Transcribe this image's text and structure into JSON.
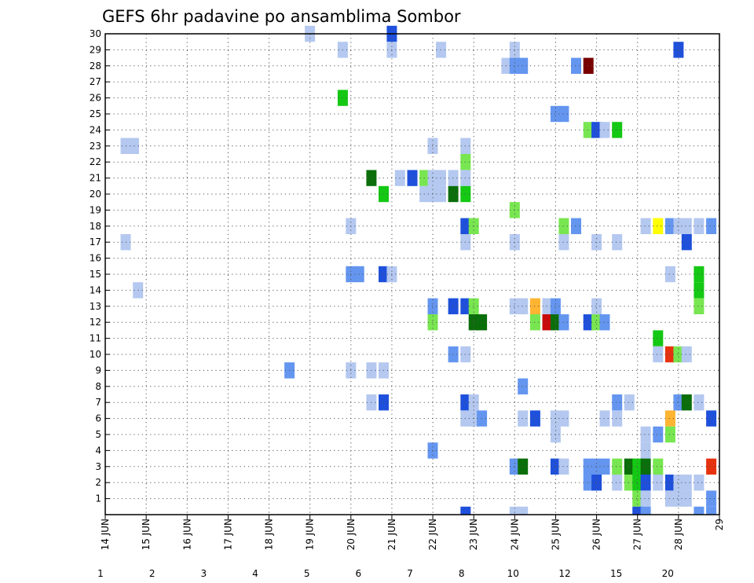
{
  "chart_data": {
    "type": "heatmap",
    "title": "GEFS 6hr padavine po ansamblima Sombor",
    "xlabel": "",
    "ylabel": "",
    "x_ticks": [
      "14 JUN",
      "15 JUN",
      "16 JUN",
      "17 JUN",
      "18 JUN",
      "19 JUN",
      "20 JUN",
      "21 JUN",
      "22 JUN",
      "23 JUN",
      "24 JUN",
      "25 JUN",
      "26 JUN",
      "27 JUN",
      "28 JUN",
      "29"
    ],
    "xlim": [
      14,
      29
    ],
    "y_ticks": [
      1,
      2,
      3,
      4,
      5,
      6,
      7,
      8,
      9,
      10,
      11,
      12,
      13,
      14,
      15,
      16,
      17,
      18,
      19,
      20,
      21,
      22,
      23,
      24,
      25,
      26,
      27,
      28,
      29,
      30
    ],
    "ylim": [
      0,
      30
    ],
    "grid": true,
    "legend": {
      "placement": "bottom",
      "labels": [
        "1",
        "2",
        "3",
        "4",
        "5",
        "6",
        "7",
        "8",
        "10",
        "12",
        "15",
        "20"
      ],
      "colors": [
        "#b4c8f0",
        "#6496f0",
        "#1e50dc",
        "#78e650",
        "#14c814",
        "#0a6e0a",
        "#ffff00",
        "#ffb432",
        "#ff7814",
        "#e6320f",
        "#c80a0a",
        "#780000"
      ]
    },
    "value_colors": {
      "1": "#b4c8f0",
      "2": "#6496f0",
      "3": "#1e50dc",
      "4": "#78e650",
      "5": "#14c814",
      "6": "#0a6e0a",
      "7": "#ffff00",
      "8": "#ffb432",
      "10": "#ff7814",
      "12": "#e6320f",
      "15": "#c80a0a",
      "20": "#780000"
    },
    "cells": [
      [
        19.0,
        30,
        1
      ],
      [
        21.0,
        30,
        3
      ],
      [
        19.8,
        29,
        1
      ],
      [
        21.0,
        29,
        1
      ],
      [
        22.2,
        29,
        1
      ],
      [
        24.0,
        29,
        1
      ],
      [
        28.0,
        29,
        3
      ],
      [
        23.8,
        28,
        1
      ],
      [
        24.0,
        28,
        2
      ],
      [
        24.2,
        28,
        2
      ],
      [
        25.5,
        28,
        2
      ],
      [
        25.8,
        28,
        20
      ],
      [
        19.8,
        26,
        5
      ],
      [
        25.0,
        25,
        2
      ],
      [
        25.2,
        25,
        2
      ],
      [
        25.8,
        24,
        4
      ],
      [
        26.0,
        24,
        3
      ],
      [
        26.2,
        24,
        1
      ],
      [
        26.5,
        24,
        5
      ],
      [
        14.5,
        23,
        1
      ],
      [
        14.7,
        23,
        1
      ],
      [
        22.0,
        23,
        1
      ],
      [
        22.8,
        23,
        1
      ],
      [
        22.8,
        22,
        4
      ],
      [
        20.5,
        21,
        6
      ],
      [
        21.2,
        21,
        1
      ],
      [
        21.5,
        21,
        3
      ],
      [
        21.8,
        21,
        4
      ],
      [
        22.0,
        21,
        1
      ],
      [
        22.2,
        21,
        1
      ],
      [
        22.5,
        21,
        1
      ],
      [
        22.8,
        21,
        1
      ],
      [
        20.8,
        20,
        5
      ],
      [
        21.8,
        20,
        1
      ],
      [
        22.0,
        20,
        1
      ],
      [
        22.2,
        20,
        1
      ],
      [
        22.5,
        20,
        6
      ],
      [
        22.8,
        20,
        5
      ],
      [
        24.0,
        19,
        4
      ],
      [
        20.0,
        18,
        1
      ],
      [
        22.8,
        18,
        3
      ],
      [
        23.0,
        18,
        4
      ],
      [
        25.2,
        18,
        4
      ],
      [
        25.5,
        18,
        2
      ],
      [
        27.2,
        18,
        1
      ],
      [
        27.5,
        18,
        7
      ],
      [
        27.8,
        18,
        2
      ],
      [
        28.0,
        18,
        1
      ],
      [
        28.2,
        18,
        1
      ],
      [
        28.5,
        18,
        1
      ],
      [
        28.8,
        18,
        2
      ],
      [
        14.5,
        17,
        1
      ],
      [
        22.8,
        17,
        1
      ],
      [
        24.0,
        17,
        1
      ],
      [
        25.2,
        17,
        1
      ],
      [
        26.0,
        17,
        1
      ],
      [
        26.5,
        17,
        1
      ],
      [
        28.2,
        17,
        3
      ],
      [
        20.0,
        15,
        2
      ],
      [
        20.2,
        15,
        2
      ],
      [
        20.8,
        15,
        3
      ],
      [
        21.0,
        15,
        1
      ],
      [
        27.8,
        15,
        1
      ],
      [
        28.5,
        15,
        5
      ],
      [
        14.8,
        14,
        1
      ],
      [
        28.5,
        14,
        5
      ],
      [
        22.0,
        13,
        2
      ],
      [
        22.5,
        13,
        3
      ],
      [
        22.8,
        13,
        3
      ],
      [
        23.0,
        13,
        4
      ],
      [
        24.0,
        13,
        1
      ],
      [
        24.2,
        13,
        1
      ],
      [
        24.5,
        13,
        8
      ],
      [
        24.8,
        13,
        1
      ],
      [
        25.0,
        13,
        2
      ],
      [
        26.0,
        13,
        1
      ],
      [
        28.5,
        13,
        4
      ],
      [
        22.0,
        12,
        4
      ],
      [
        23.0,
        12,
        6
      ],
      [
        23.2,
        12,
        6
      ],
      [
        24.5,
        12,
        4
      ],
      [
        24.8,
        12,
        15
      ],
      [
        25.0,
        12,
        6
      ],
      [
        25.2,
        12,
        2
      ],
      [
        25.8,
        12,
        3
      ],
      [
        26.0,
        12,
        4
      ],
      [
        26.2,
        12,
        2
      ],
      [
        27.5,
        11,
        5
      ],
      [
        22.5,
        10,
        2
      ],
      [
        22.8,
        10,
        1
      ],
      [
        27.5,
        10,
        1
      ],
      [
        27.8,
        10,
        12
      ],
      [
        28.0,
        10,
        4
      ],
      [
        28.2,
        10,
        1
      ],
      [
        18.5,
        9,
        2
      ],
      [
        20.0,
        9,
        1
      ],
      [
        20.5,
        9,
        1
      ],
      [
        20.8,
        9,
        1
      ],
      [
        24.2,
        8,
        2
      ],
      [
        20.5,
        7,
        1
      ],
      [
        20.8,
        7,
        3
      ],
      [
        22.8,
        7,
        3
      ],
      [
        23.0,
        7,
        1
      ],
      [
        26.5,
        7,
        2
      ],
      [
        26.8,
        7,
        1
      ],
      [
        28.0,
        7,
        2
      ],
      [
        28.2,
        7,
        6
      ],
      [
        28.5,
        7,
        1
      ],
      [
        22.8,
        6,
        1
      ],
      [
        23.0,
        6,
        1
      ],
      [
        23.2,
        6,
        2
      ],
      [
        24.2,
        6,
        1
      ],
      [
        24.5,
        6,
        3
      ],
      [
        25.0,
        6,
        1
      ],
      [
        25.2,
        6,
        1
      ],
      [
        26.2,
        6,
        1
      ],
      [
        26.5,
        6,
        1
      ],
      [
        27.8,
        6,
        8
      ],
      [
        28.8,
        6,
        3
      ],
      [
        25.0,
        5,
        1
      ],
      [
        27.2,
        5,
        1
      ],
      [
        27.5,
        5,
        2
      ],
      [
        27.8,
        5,
        4
      ],
      [
        22.0,
        4,
        2
      ],
      [
        27.2,
        4,
        1
      ],
      [
        24.0,
        3,
        2
      ],
      [
        24.2,
        3,
        6
      ],
      [
        25.0,
        3,
        3
      ],
      [
        25.2,
        3,
        1
      ],
      [
        25.8,
        3,
        2
      ],
      [
        26.0,
        3,
        2
      ],
      [
        26.2,
        3,
        2
      ],
      [
        26.5,
        3,
        4
      ],
      [
        26.8,
        3,
        6
      ],
      [
        27.0,
        3,
        5
      ],
      [
        27.2,
        3,
        6
      ],
      [
        27.5,
        3,
        4
      ],
      [
        28.8,
        3,
        12
      ],
      [
        25.8,
        2,
        2
      ],
      [
        26.0,
        2,
        3
      ],
      [
        26.5,
        2,
        1
      ],
      [
        26.8,
        2,
        4
      ],
      [
        27.0,
        2,
        5
      ],
      [
        27.2,
        2,
        3
      ],
      [
        27.5,
        2,
        1
      ],
      [
        27.8,
        2,
        3
      ],
      [
        28.0,
        2,
        1
      ],
      [
        28.2,
        2,
        1
      ],
      [
        28.5,
        2,
        1
      ],
      [
        27.0,
        1,
        4
      ],
      [
        27.2,
        1,
        1
      ],
      [
        27.8,
        1,
        1
      ],
      [
        28.0,
        1,
        1
      ],
      [
        28.2,
        1,
        1
      ],
      [
        28.8,
        1,
        2
      ],
      [
        22.8,
        0,
        3
      ],
      [
        24.0,
        0,
        1
      ],
      [
        24.2,
        0,
        1
      ],
      [
        27.0,
        0,
        3
      ],
      [
        27.2,
        0,
        2
      ],
      [
        28.5,
        0,
        2
      ],
      [
        28.8,
        0,
        2
      ]
    ]
  }
}
